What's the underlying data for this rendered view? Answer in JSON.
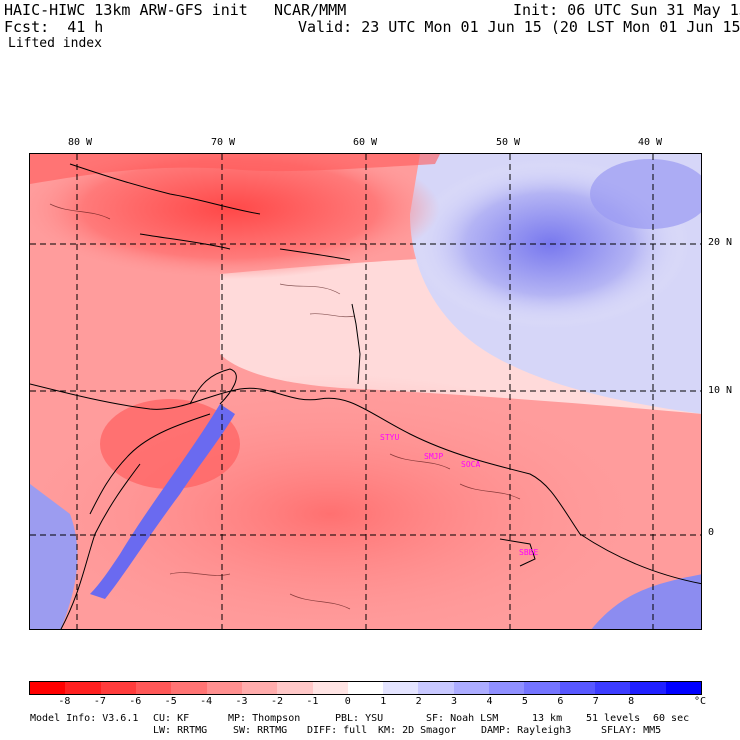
{
  "header": {
    "model": "HAIC-HIWC 13km ARW-GFS init",
    "org": "NCAR/MMM",
    "init": "Init: 06 UTC Sun 31 May 15",
    "fcst": "Fcst:  41 h",
    "valid": "Valid: 23 UTC Mon 01 Jun 15 (20 LST Mon 01 Jun 15)",
    "field": "Lifted index"
  },
  "map": {
    "lon_labels": [
      "80 W",
      "70 W",
      "60 W",
      "50 W",
      "40 W"
    ],
    "lat_labels": [
      "20 N",
      "10 N",
      "0"
    ],
    "stations": [
      "STYU",
      "SMJP",
      "SOCA",
      "SBBE"
    ]
  },
  "colorbar": {
    "ticks": [
      "-8",
      "-7",
      "-6",
      "-5",
      "-4",
      "-3",
      "-2",
      "-1",
      "0",
      "1",
      "2",
      "3",
      "4",
      "5",
      "6",
      "7",
      "8"
    ],
    "unit": "°C",
    "colors": [
      "#ff0000",
      "#ff2020",
      "#ff3c3c",
      "#ff5858",
      "#ff7474",
      "#ff9090",
      "#ffacac",
      "#ffc8c8",
      "#ffe4e4",
      "#ffffff",
      "#e4e4ff",
      "#c8c8ff",
      "#acacff",
      "#9090ff",
      "#7474ff",
      "#5858ff",
      "#3c3cff",
      "#2020ff",
      "#0000ff"
    ]
  },
  "footer": {
    "line1": [
      "Model Info: V3.6.1",
      "CU: KF",
      "MP: Thompson",
      "PBL: YSU",
      "SF: Noah LSM",
      "13 km",
      "51 levels",
      "60 sec"
    ],
    "line2": [
      "LW: RRTMG",
      "SW: RRTMG",
      "DIFF: full",
      "KM: 2D Smagor",
      "DAMP: Rayleigh3",
      "SFLAY: MM5"
    ]
  }
}
